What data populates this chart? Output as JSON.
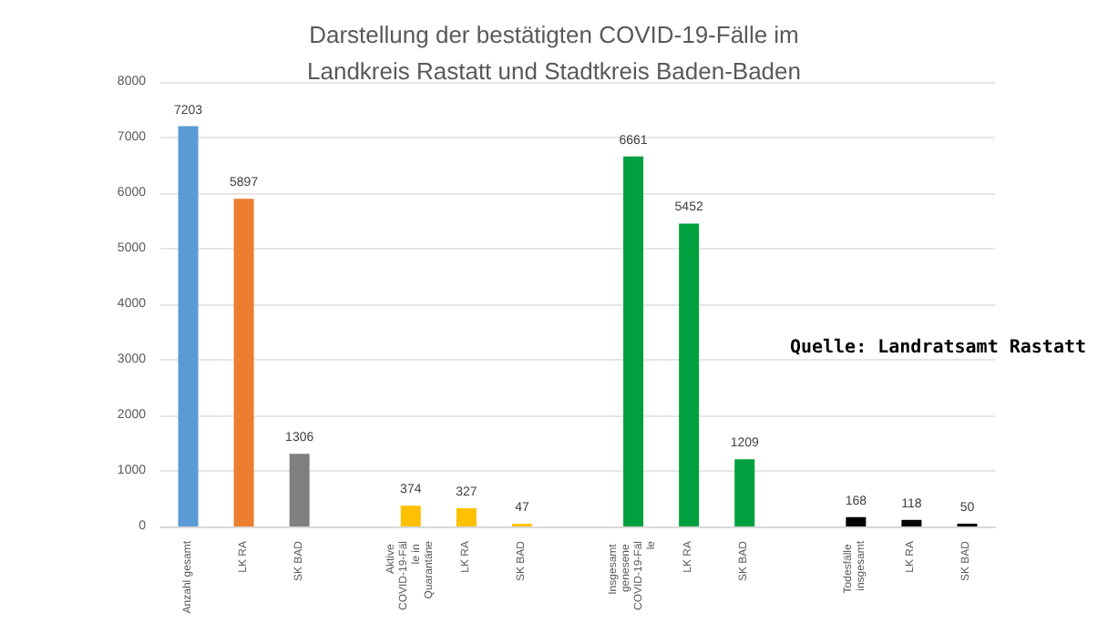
{
  "chart_data": {
    "type": "bar",
    "title": "Darstellung der bestätigten COVID-19-Fälle im\nLandkreis Rastatt und Stadtkreis Baden-Baden",
    "categories": [
      "Anzahl gesamt",
      "LK RA",
      "SK BAD",
      null,
      "Aktive COVID-19-Fälle in Quarantäne",
      "LK RA",
      "SK BAD",
      null,
      "Insgesamt genesene COVID-19-Fälle",
      "LK RA",
      "SK BAD",
      null,
      "Todesfälle insgesamt",
      "LK RA",
      "SK BAD"
    ],
    "values": [
      7203,
      5897,
      1306,
      null,
      374,
      327,
      47,
      null,
      6661,
      5452,
      1209,
      null,
      168,
      118,
      50
    ],
    "colors": [
      "#5b9bd5",
      "#ed7d31",
      "#7f7f7f",
      null,
      "#ffc000",
      "#ffc000",
      "#ffc000",
      null,
      "#00a03e",
      "#00a03e",
      "#00a03e",
      null,
      "#000000",
      "#000000",
      "#000000"
    ],
    "ylim": [
      0,
      8000
    ],
    "yticks": [
      0,
      1000,
      2000,
      3000,
      4000,
      5000,
      6000,
      7000,
      8000
    ],
    "grid": "y",
    "data_labels": true,
    "annotations": [
      "Quelle: Landratsamt Rastatt"
    ]
  }
}
